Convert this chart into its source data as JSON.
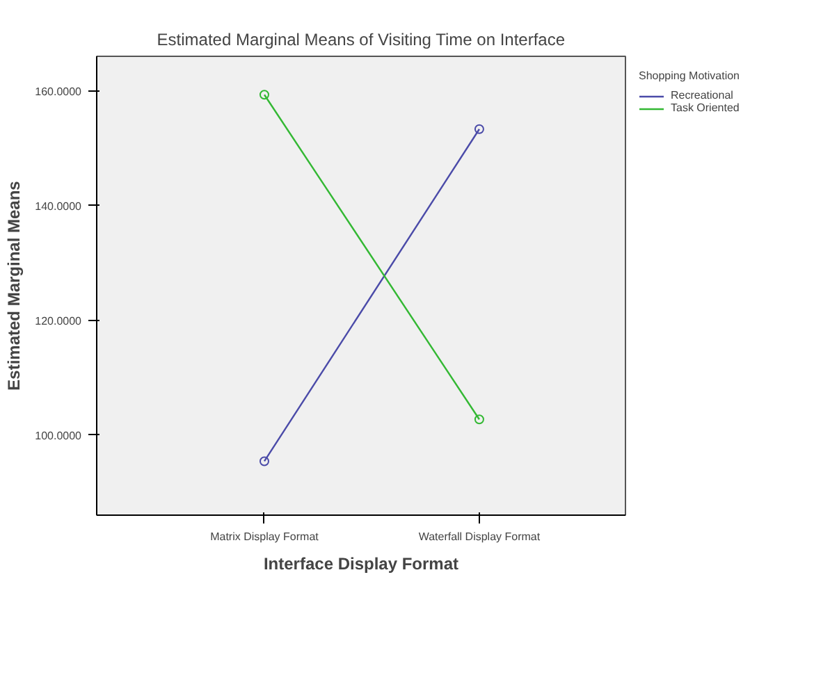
{
  "chart_data": {
    "type": "line",
    "title": "Estimated Marginal Means of Visiting Time on Interface",
    "xlabel": "Interface Display Format",
    "ylabel": "Estimated Marginal Means",
    "legend_title": "Shopping Motivation",
    "legend": "right",
    "marker": "circle",
    "grid": false,
    "categories": [
      "Matrix Display Format",
      "Waterfall Display Format"
    ],
    "series": [
      {
        "name": "Recreational",
        "color": "#4a4aa8",
        "values": [
          95.4,
          153.3
        ]
      },
      {
        "name": "Task Oriented",
        "color": "#33b833",
        "values": [
          159.3,
          102.7
        ]
      }
    ],
    "ylim": [
      86,
      166
    ],
    "yticks": [
      {
        "value": 100,
        "label": "100.0000"
      },
      {
        "value": 120,
        "label": "120.0000"
      },
      {
        "value": 140,
        "label": "140.0000"
      },
      {
        "value": 160,
        "label": "160.0000"
      }
    ]
  }
}
